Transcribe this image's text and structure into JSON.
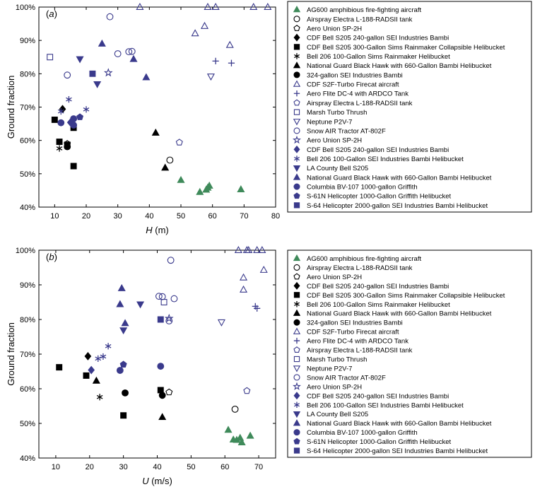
{
  "colors": {
    "black": "#000000",
    "green": "#3f8a5a",
    "blue": "#3a3a8c",
    "frame": "#000000"
  },
  "legend": [
    {
      "label": "AG600 amphibious fire-fighting aircraft",
      "marker": "triangle",
      "fill": "filled",
      "color": "#3f8a5a"
    },
    {
      "label": "Airspray Electra L-188-RADSII tank",
      "marker": "circle",
      "fill": "open",
      "color": "#000000"
    },
    {
      "label": "Aero Union SP-2H",
      "marker": "pentagon",
      "fill": "open",
      "color": "#000000"
    },
    {
      "label": "CDF Bell S205 240-gallon SEI Industries Bambi",
      "marker": "diamond",
      "fill": "filled",
      "color": "#000000"
    },
    {
      "label": "CDF Bell S205 300-Gallon Sims Rainmaker Collapsible Helibucket",
      "marker": "square",
      "fill": "filled",
      "color": "#000000"
    },
    {
      "label": "Bell 206 100-Gallon Sims Rainmaker Helibucket",
      "marker": "star6",
      "fill": "line",
      "color": "#000000"
    },
    {
      "label": "National Guard Black Hawk with 660-Gallon Bambi Helibucket",
      "marker": "triangle",
      "fill": "filled",
      "color": "#000000"
    },
    {
      "label": "324-gallon SEI Industries Bambi",
      "marker": "circle",
      "fill": "filled",
      "color": "#000000"
    },
    {
      "label": "CDF S2F-Turbo Firecat aircraft",
      "marker": "triangle",
      "fill": "open",
      "color": "#3a3a8c"
    },
    {
      "label": "Aero Flite DC-4 with ARDCO Tank",
      "marker": "plus",
      "fill": "line",
      "color": "#3a3a8c"
    },
    {
      "label": "Airspray Electra L-188-RADSII tank",
      "marker": "pentagon",
      "fill": "open",
      "color": "#3a3a8c"
    },
    {
      "label": "Marsh Turbo Thrush",
      "marker": "square",
      "fill": "open",
      "color": "#3a3a8c"
    },
    {
      "label": "Neptune P2V-7",
      "marker": "triangle-down",
      "fill": "open",
      "color": "#3a3a8c"
    },
    {
      "label": "Snow AIR Tractor AT-802F",
      "marker": "circle",
      "fill": "open",
      "color": "#3a3a8c"
    },
    {
      "label": "Aero Union SP-2H",
      "marker": "star5",
      "fill": "open",
      "color": "#3a3a8c"
    },
    {
      "label": "CDF Bell S205 240-gallon SEI Industries Bambi",
      "marker": "diamond",
      "fill": "filled",
      "color": "#3a3a8c"
    },
    {
      "label": "Bell 206 100-Gallon SEI Industries Bambi Helibucket",
      "marker": "star6",
      "fill": "line",
      "color": "#3a3a8c"
    },
    {
      "label": "LA County Bell S205",
      "marker": "triangle-down",
      "fill": "filled",
      "color": "#3a3a8c"
    },
    {
      "label": "National Guard Black Hawk with 660-Gallon Bambi Helibucket",
      "marker": "triangle",
      "fill": "filled",
      "color": "#3a3a8c"
    },
    {
      "label": "Columbia BV-107 1000-gallon Griffith",
      "marker": "circle",
      "fill": "filled",
      "color": "#3a3a8c"
    },
    {
      "label": "S-61N Helicopter 1000-Gallon Griffith Helibucket",
      "marker": "pentagon",
      "fill": "filled",
      "color": "#3a3a8c"
    },
    {
      "label": "S-64 Helicopter 2000-gallon SEI Industries Bambi Helibucket",
      "marker": "square",
      "fill": "filled",
      "color": "#3a3a8c"
    }
  ],
  "chart_data": [
    {
      "type": "scatter",
      "panel_label": "(a)",
      "xlabel": "H (m)",
      "ylabel": "Ground fraction",
      "xlim": [
        5,
        80
      ],
      "ylim": [
        40,
        100
      ],
      "xticks": [
        10,
        20,
        30,
        40,
        50,
        60,
        70,
        80
      ],
      "yticks": [
        40,
        50,
        60,
        70,
        80,
        90,
        100
      ],
      "ytick_labels": [
        "40%",
        "50%",
        "60%",
        "70%",
        "80%",
        "90%",
        "100%"
      ],
      "grid": false,
      "legend_position": "right",
      "series": [
        {
          "series_index": 0,
          "points": [
            [
              50,
              48.1
            ],
            [
              56,
              44.5
            ],
            [
              58,
              45.2
            ],
            [
              58.5,
              45.8
            ],
            [
              59,
              46.4
            ],
            [
              69,
              45.3
            ]
          ]
        },
        {
          "series_index": 1,
          "points": [
            [
              46.5,
              54.1
            ]
          ]
        },
        {
          "series_index": 2,
          "points": [
            [
              14,
              59
            ]
          ]
        },
        {
          "series_index": 3,
          "points": [
            [
              12.5,
              69.4
            ]
          ]
        },
        {
          "series_index": 4,
          "points": [
            [
              10,
              66.2
            ],
            [
              11.5,
              59.6
            ],
            [
              14,
              58.7
            ],
            [
              16,
              52.3
            ],
            [
              16,
              63.8
            ]
          ]
        },
        {
          "series_index": 5,
          "points": [
            [
              11.5,
              57.6
            ]
          ]
        },
        {
          "series_index": 6,
          "points": [
            [
              42,
              62.3
            ],
            [
              45,
              51.8
            ]
          ]
        },
        {
          "series_index": 7,
          "points": [
            [
              14,
              58.1
            ]
          ]
        },
        {
          "series_index": 8,
          "points": [
            [
              37,
              100
            ],
            [
              54.5,
              92.1
            ],
            [
              57.5,
              94.3
            ],
            [
              58.5,
              100
            ],
            [
              61,
              100
            ],
            [
              65.5,
              88.6
            ],
            [
              73,
              100
            ],
            [
              77.5,
              100
            ]
          ]
        },
        {
          "series_index": 9,
          "points": [
            [
              61,
              83.8
            ],
            [
              66,
              83.2
            ]
          ]
        },
        {
          "series_index": 10,
          "points": [
            [
              49.5,
              59.4
            ]
          ]
        },
        {
          "series_index": 11,
          "points": [
            [
              8.5,
              85
            ]
          ]
        },
        {
          "series_index": 12,
          "points": [
            [
              59.5,
              79.2
            ]
          ]
        },
        {
          "series_index": 13,
          "points": [
            [
              14,
              79.6
            ],
            [
              27.5,
              97.1
            ],
            [
              30,
              86
            ],
            [
              33.5,
              86.6
            ],
            [
              34.5,
              86.7
            ]
          ]
        },
        {
          "series_index": 14,
          "points": [
            [
              27,
              80.3
            ]
          ]
        },
        {
          "series_index": 15,
          "points": [
            [
              15,
              65.4
            ]
          ]
        },
        {
          "series_index": 16,
          "points": [
            [
              12,
              68.7
            ],
            [
              14.5,
              72.3
            ],
            [
              20,
              69.3
            ]
          ]
        },
        {
          "series_index": 17,
          "points": [
            [
              18,
              84.4
            ],
            [
              23.5,
              76.9
            ]
          ]
        },
        {
          "series_index": 18,
          "points": [
            [
              25,
              89
            ],
            [
              35,
              84.4
            ],
            [
              39,
              78.9
            ]
          ]
        },
        {
          "series_index": 19,
          "points": [
            [
              12,
              65.3
            ],
            [
              16,
              66.5
            ],
            [
              16,
              64.6
            ]
          ]
        },
        {
          "series_index": 20,
          "points": [
            [
              18,
              67
            ]
          ]
        },
        {
          "series_index": 21,
          "points": [
            [
              22,
              80
            ]
          ]
        }
      ]
    },
    {
      "type": "scatter",
      "panel_label": "(b)",
      "xlabel": "U (m/s)",
      "ylabel": "Ground fraction",
      "xlim": [
        5,
        75
      ],
      "ylim": [
        40,
        100
      ],
      "xticks": [
        10,
        20,
        30,
        40,
        50,
        60,
        70
      ],
      "yticks": [
        40,
        50,
        60,
        70,
        80,
        90,
        100
      ],
      "ytick_labels": [
        "40%",
        "50%",
        "60%",
        "70%",
        "80%",
        "90%",
        "100%"
      ],
      "grid": false,
      "legend_position": "right",
      "series": [
        {
          "series_index": 0,
          "points": [
            [
              61,
              48.1
            ],
            [
              62.5,
              45.3
            ],
            [
              63.5,
              45.2
            ],
            [
              64.5,
              45.8
            ],
            [
              65,
              44.5
            ],
            [
              67.5,
              46.4
            ]
          ]
        },
        {
          "series_index": 1,
          "points": [
            [
              63,
              54.1
            ]
          ]
        },
        {
          "series_index": 2,
          "points": [
            [
              43.5,
              59
            ]
          ]
        },
        {
          "series_index": 3,
          "points": [
            [
              19.5,
              69.4
            ]
          ]
        },
        {
          "series_index": 4,
          "points": [
            [
              11,
              66.2
            ],
            [
              19,
              63.8
            ],
            [
              30,
              52.3
            ],
            [
              41,
              59.6
            ]
          ]
        },
        {
          "series_index": 5,
          "points": [
            [
              23,
              57.6
            ]
          ]
        },
        {
          "series_index": 6,
          "points": [
            [
              22,
              62.3
            ],
            [
              41.5,
              51.8
            ]
          ]
        },
        {
          "series_index": 7,
          "points": [
            [
              30.5,
              58.8
            ],
            [
              41.5,
              58.1
            ]
          ]
        },
        {
          "series_index": 8,
          "points": [
            [
              64,
              100
            ],
            [
              65.5,
              92.1
            ],
            [
              65.5,
              88.6
            ],
            [
              66.5,
              100
            ],
            [
              67,
              100
            ],
            [
              69.5,
              100
            ],
            [
              71,
              100
            ],
            [
              71.5,
              94.3
            ]
          ]
        },
        {
          "series_index": 9,
          "points": [
            [
              69,
              83.8
            ],
            [
              69.5,
              83.2
            ]
          ]
        },
        {
          "series_index": 10,
          "points": [
            [
              66.5,
              59.4
            ]
          ]
        },
        {
          "series_index": 11,
          "points": [
            [
              42,
              85
            ]
          ]
        },
        {
          "series_index": 12,
          "points": [
            [
              59,
              79.2
            ]
          ]
        },
        {
          "series_index": 13,
          "points": [
            [
              40.5,
              86.7
            ],
            [
              41.5,
              86.6
            ],
            [
              43.5,
              79.6
            ],
            [
              44,
              97.1
            ],
            [
              45,
              86
            ]
          ]
        },
        {
          "series_index": 14,
          "points": [
            [
              43.5,
              80.3
            ]
          ]
        },
        {
          "series_index": 15,
          "points": [
            [
              20.5,
              65.4
            ]
          ]
        },
        {
          "series_index": 16,
          "points": [
            [
              22.5,
              68.7
            ],
            [
              24,
              69.3
            ],
            [
              25.5,
              72.3
            ]
          ]
        },
        {
          "series_index": 17,
          "points": [
            [
              30,
              76.9
            ],
            [
              35,
              84.4
            ]
          ]
        },
        {
          "series_index": 18,
          "points": [
            [
              29,
              84.4
            ],
            [
              29.5,
              89
            ],
            [
              30.5,
              78.9
            ]
          ]
        },
        {
          "series_index": 19,
          "points": [
            [
              29,
              65.3
            ],
            [
              41,
              66.5
            ]
          ]
        },
        {
          "series_index": 20,
          "points": [
            [
              30,
              67
            ]
          ]
        },
        {
          "series_index": 21,
          "points": [
            [
              41,
              80
            ]
          ]
        }
      ]
    }
  ]
}
